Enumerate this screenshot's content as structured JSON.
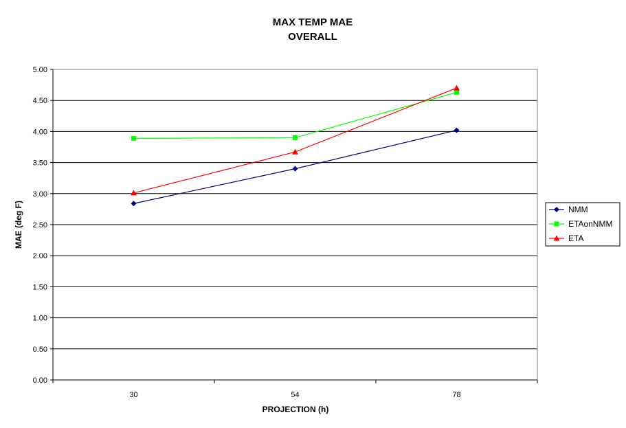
{
  "chart_data": {
    "type": "line",
    "title": "MAX TEMP MAE",
    "subtitle": "OVERALL",
    "xlabel": "PROJECTION (h)",
    "ylabel": "MAE (deg F)",
    "categories": [
      "30",
      "54",
      "78"
    ],
    "ylim": [
      0,
      5
    ],
    "ytick_labels": [
      "0.00",
      "0.50",
      "1.00",
      "1.50",
      "2.00",
      "2.50",
      "3.00",
      "3.50",
      "4.00",
      "4.50",
      "5.00"
    ],
    "grid": true,
    "legend_position": "right",
    "series": [
      {
        "name": "NMM",
        "values": [
          2.84,
          3.4,
          4.02
        ],
        "color": "#000080",
        "marker": "diamond"
      },
      {
        "name": "ETAonNMM",
        "values": [
          3.89,
          3.9,
          4.63
        ],
        "color": "#00ff00",
        "marker": "square"
      },
      {
        "name": "ETA",
        "values": [
          3.01,
          3.67,
          4.7
        ],
        "color": "#ff0000",
        "marker": "triangle"
      }
    ]
  }
}
